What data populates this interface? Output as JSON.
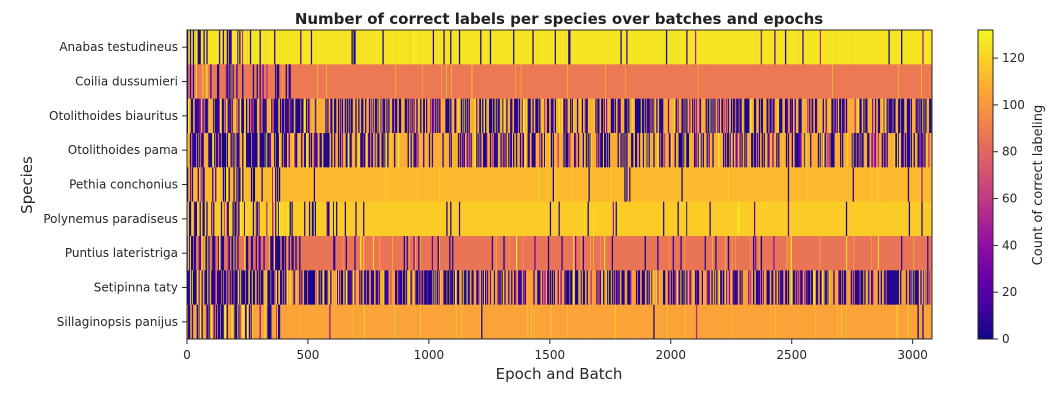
{
  "chart_data": {
    "type": "heatmap",
    "title": "Number of correct labels per species over batches and epochs",
    "xlabel": "Epoch and Batch",
    "ylabel": "Species",
    "colorbar_label": "Count of correct labeling",
    "colormap": "plasma",
    "xlim": [
      0,
      3080
    ],
    "xticks": [
      0,
      500,
      1000,
      1500,
      2000,
      2500,
      3000
    ],
    "clim": [
      0,
      132
    ],
    "colorbar_ticks": [
      0,
      20,
      40,
      60,
      80,
      100,
      120
    ],
    "grid": false,
    "rows": [
      {
        "name": "Anabas testudineus",
        "pattern": [
          [
            0,
            30,
            0.35
          ],
          [
            30,
            300,
            0.25
          ],
          [
            300,
            3080,
            0.05
          ]
        ],
        "steady_value": 126
      },
      {
        "name": "Coilia dussumieri",
        "pattern": [
          [
            0,
            20,
            0.4
          ],
          [
            20,
            430,
            0.3
          ],
          [
            430,
            3080,
            0.0
          ]
        ],
        "steady_value": 88
      },
      {
        "name": "Otolithoides biauritus",
        "pattern": [
          [
            0,
            30,
            0.7
          ],
          [
            30,
            600,
            0.55
          ],
          [
            600,
            3080,
            0.45
          ]
        ],
        "steady_value": 108
      },
      {
        "name": "Otolithoides pama",
        "pattern": [
          [
            0,
            30,
            0.7
          ],
          [
            30,
            600,
            0.6
          ],
          [
            600,
            3080,
            0.45
          ]
        ],
        "steady_value": 108
      },
      {
        "name": "Pethia conchonius",
        "pattern": [
          [
            0,
            15,
            0.7
          ],
          [
            15,
            400,
            0.3
          ],
          [
            400,
            3080,
            0.02
          ]
        ],
        "steady_value": 112
      },
      {
        "name": "Polynemus paradiseus",
        "pattern": [
          [
            0,
            15,
            0.6
          ],
          [
            15,
            620,
            0.3
          ],
          [
            620,
            3080,
            0.03
          ]
        ],
        "steady_value": 118
      },
      {
        "name": "Puntius lateristriga",
        "pattern": [
          [
            0,
            30,
            0.8
          ],
          [
            30,
            450,
            0.55
          ],
          [
            450,
            3080,
            0.08
          ]
        ],
        "steady_value": 86
      },
      {
        "name": "Setipinna taty",
        "pattern": [
          [
            0,
            30,
            0.8
          ],
          [
            30,
            650,
            0.6
          ],
          [
            650,
            3080,
            0.55
          ]
        ],
        "steady_value": 104
      },
      {
        "name": "Sillaginopsis panijus",
        "pattern": [
          [
            0,
            20,
            0.6
          ],
          [
            20,
            400,
            0.45
          ],
          [
            400,
            3080,
            0.01
          ]
        ],
        "steady_value": 104
      }
    ]
  }
}
